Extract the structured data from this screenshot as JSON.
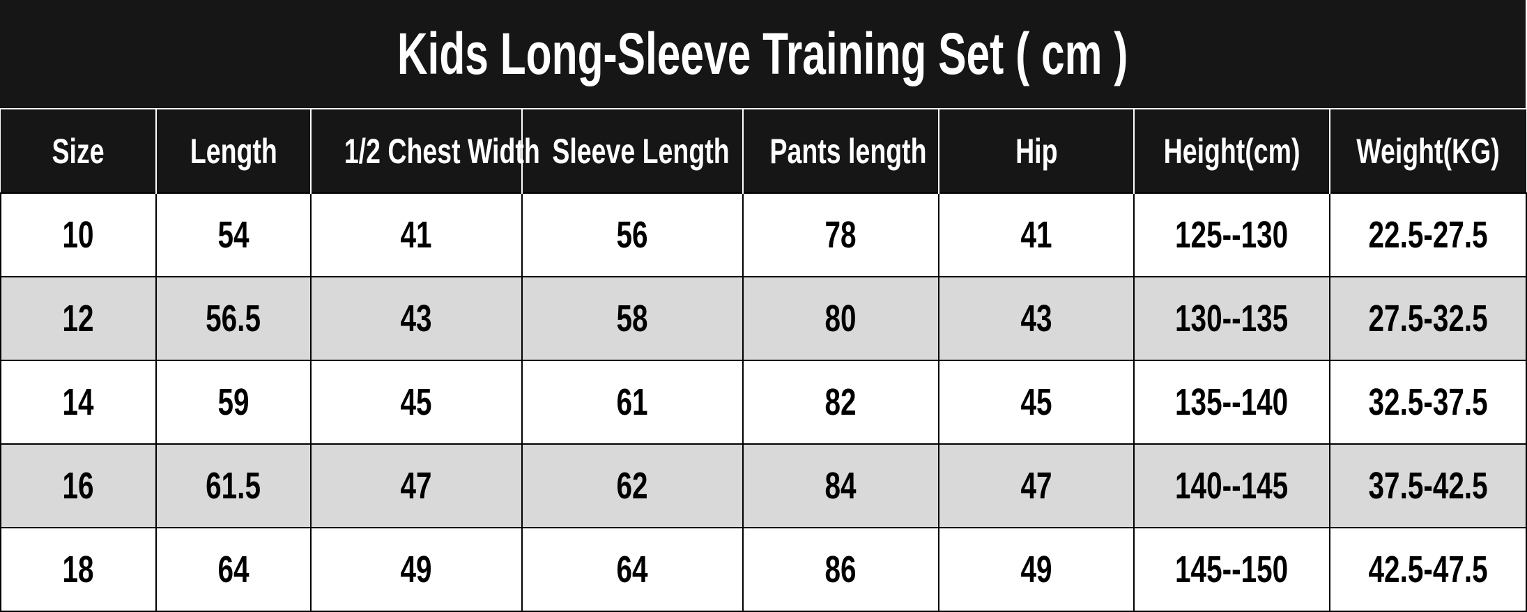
{
  "title": "Kids Long-Sleeve Training Set ( cm )",
  "colors": {
    "header_bg": "#161616",
    "header_text": "#ffffff",
    "alt_row_bg": "#d9d9d9"
  },
  "columns": [
    "Size",
    "Length",
    "1/2 Chest Width",
    "Sleeve Length",
    "Pants length",
    "Hip",
    "Height(cm)",
    "Weight(KG)"
  ],
  "rows": [
    [
      "10",
      "54",
      "41",
      "56",
      "78",
      "41",
      "125--130",
      "22.5-27.5"
    ],
    [
      "12",
      "56.5",
      "43",
      "58",
      "80",
      "43",
      "130--135",
      "27.5-32.5"
    ],
    [
      "14",
      "59",
      "45",
      "61",
      "82",
      "45",
      "135--140",
      "32.5-37.5"
    ],
    [
      "16",
      "61.5",
      "47",
      "62",
      "84",
      "47",
      "140--145",
      "37.5-42.5"
    ],
    [
      "18",
      "64",
      "49",
      "64",
      "86",
      "49",
      "145--150",
      "42.5-47.5"
    ]
  ]
}
